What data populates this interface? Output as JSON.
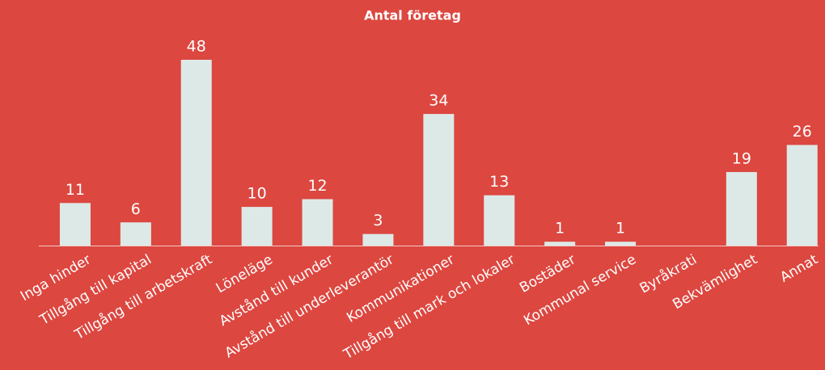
{
  "chart_data": {
    "type": "bar",
    "title": "Antal företag",
    "categories": [
      "Inga hinder",
      "Tillgång till kapital",
      "Tillgång till arbetskraft",
      "Löneläge",
      "Avstånd till kunder",
      "Avstånd till underleverantör",
      "Kommunikationer",
      "Tillgång till mark och lokaler",
      "Bostäder",
      "Kommunal service",
      "Byråkrati",
      "Bekvämlighet",
      "Annat"
    ],
    "values": [
      11,
      6,
      48,
      10,
      12,
      3,
      34,
      13,
      1,
      1,
      null,
      19,
      26
    ],
    "color": "#dde9e7",
    "background": "#dc4740"
  }
}
